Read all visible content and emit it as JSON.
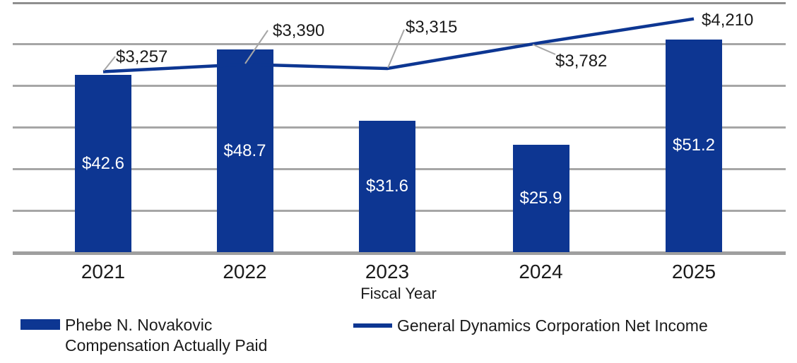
{
  "chart_data": {
    "type": "combo",
    "categories": [
      "2021",
      "2022",
      "2023",
      "2024",
      "2025"
    ],
    "series": [
      {
        "name": "Phebe N. Novakovic Compensation Actually Paid",
        "type": "bar",
        "values": [
          42.6,
          48.7,
          31.6,
          25.9,
          51.2
        ],
        "labels": [
          "$42.6",
          "$48.7",
          "$31.6",
          "$25.9",
          "$51.2"
        ],
        "axis_range": [
          0,
          60
        ]
      },
      {
        "name": "General Dynamics Corporation Net Income",
        "type": "line",
        "values": [
          3257,
          3390,
          3315,
          3782,
          4210
        ],
        "labels": [
          "$3,257",
          "$3,390",
          "$3,315",
          "$3,782",
          "$4,210"
        ],
        "axis_range": [
          0,
          4500
        ]
      }
    ],
    "xlabel": "Fiscal Year",
    "grid": true,
    "gridline_count": 5,
    "legend_position": "bottom"
  },
  "legend": {
    "items": [
      {
        "swatch": "bar",
        "lines": [
          "Phebe N. Novakovic",
          "Compensation Actually Paid"
        ]
      },
      {
        "swatch": "line",
        "lines": [
          "General Dynamics Corporation Net Income"
        ]
      }
    ]
  },
  "colors": {
    "navy": "#0d3692",
    "gridline": "#a6a6a6",
    "top_border": "#8f8f8f",
    "axis": "#9f9f9f",
    "leader": "#a6a6a6",
    "text": "#1b1b1b",
    "bar_label": "#ffffff"
  }
}
